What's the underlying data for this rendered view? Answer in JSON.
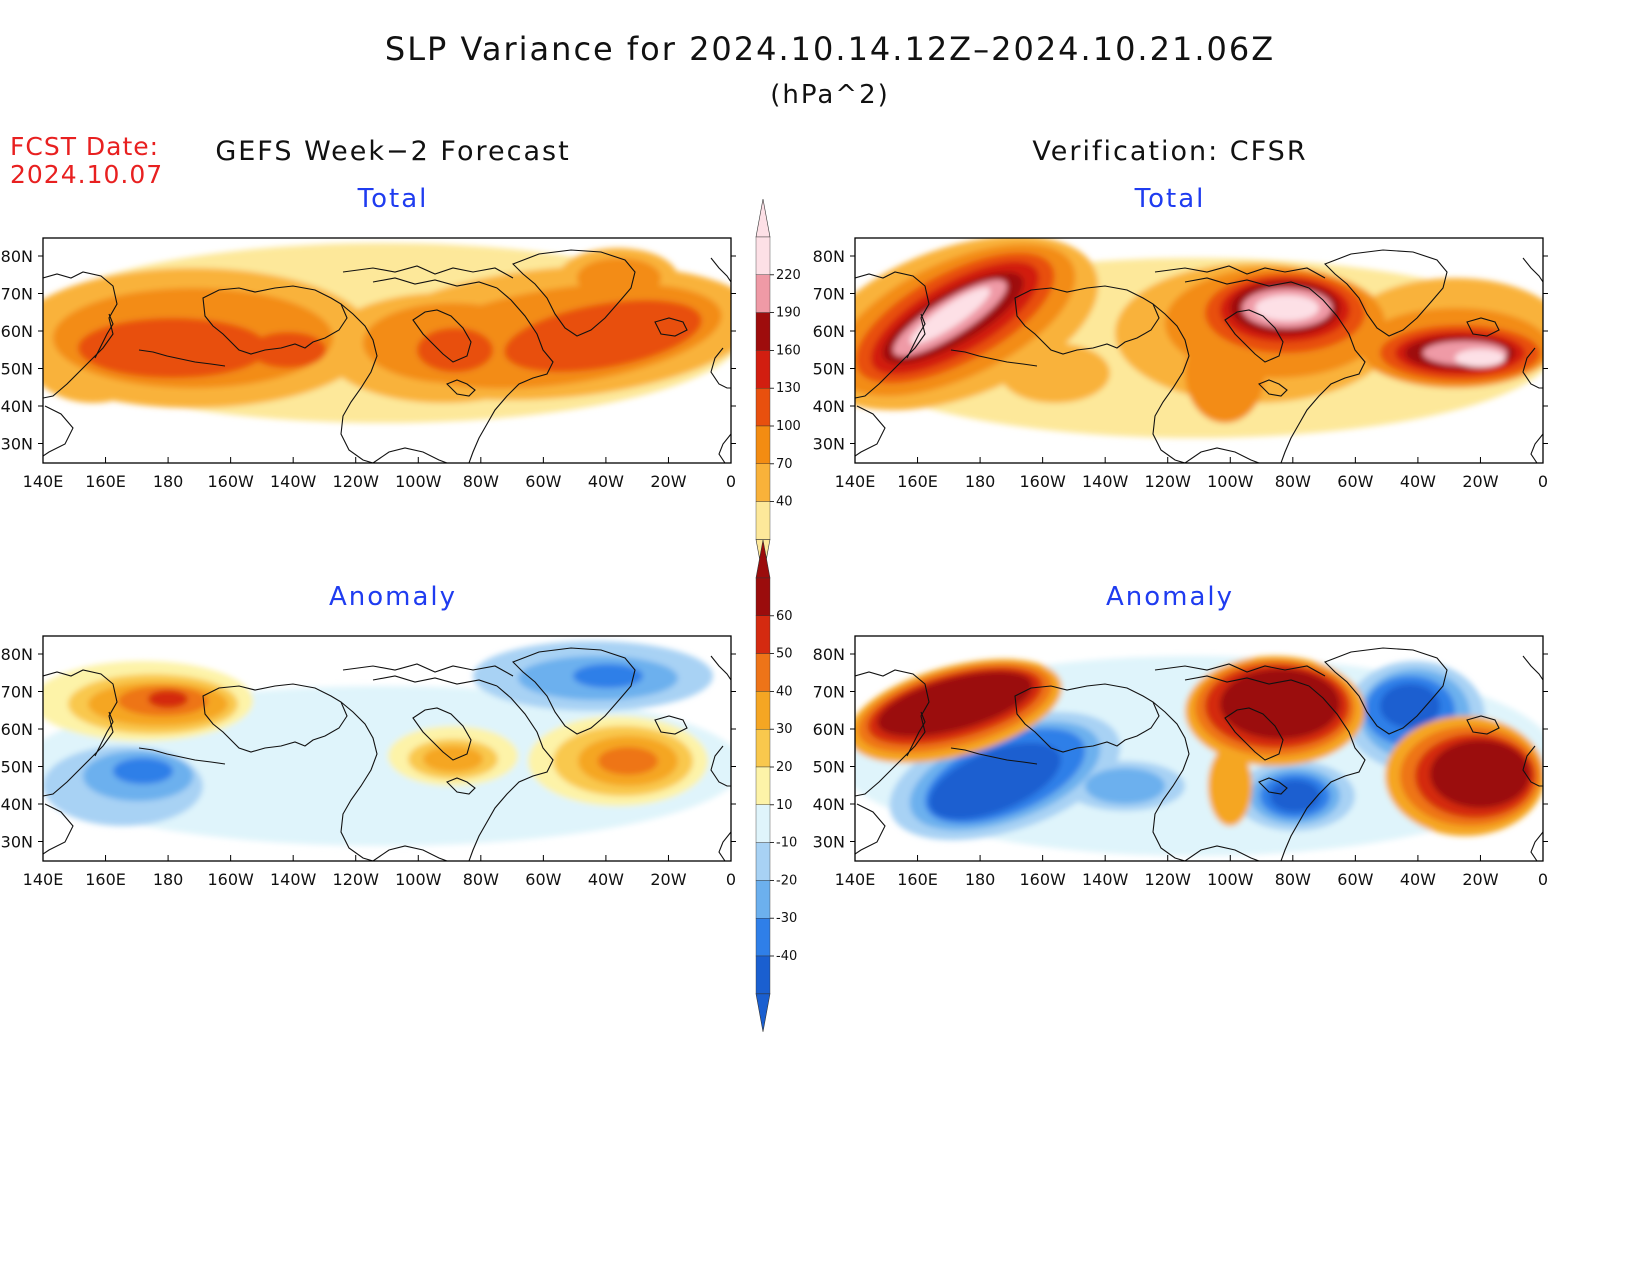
{
  "figure": {
    "title": "SLP Variance for 2024.10.14.12Z–2024.10.21.06Z",
    "units": "(hPa^2)",
    "fcst_label": "FCST Date:",
    "fcst_date": "2024.10.07",
    "left_heading": "GEFS Week−2 Forecast",
    "right_heading": "Verification: CFSR"
  },
  "axes": {
    "lon_labels": [
      "140E",
      "160E",
      "180",
      "160W",
      "140W",
      "120W",
      "100W",
      "80W",
      "60W",
      "40W",
      "20W",
      "0"
    ],
    "lat_labels": [
      "80N",
      "70N",
      "60N",
      "50N",
      "40N",
      "30N"
    ]
  },
  "panels": [
    {
      "id": "forecast-total",
      "title": "Total"
    },
    {
      "id": "verification-total",
      "title": "Total"
    },
    {
      "id": "forecast-anomaly",
      "title": "Anomaly"
    },
    {
      "id": "verification-anomaly",
      "title": "Anomaly"
    }
  ],
  "colorbars": {
    "total": {
      "levels": [
        "40",
        "70",
        "100",
        "130",
        "160",
        "190",
        "220"
      ],
      "colors": [
        "#fde89a",
        "#f9b23a",
        "#f38c12",
        "#e8500e",
        "#d21e10",
        "#9e0c0c",
        "#ef9aa6",
        "#fde0e6"
      ]
    },
    "anomaly": {
      "levels": [
        "-40",
        "-30",
        "-20",
        "-10",
        "10",
        "20",
        "30",
        "40",
        "50",
        "60"
      ],
      "colors": [
        "#1a5fd0",
        "#2f7fe8",
        "#6cb0ee",
        "#a8d2f4",
        "#dff4fb",
        "#ffffff",
        "#fdf3a8",
        "#f9c84d",
        "#f5a623",
        "#ee7418",
        "#d42a10",
        "#9b0c0c"
      ]
    }
  },
  "chart_data": [
    {
      "type": "heatmap",
      "panel": "GEFS Week-2 Forecast",
      "title": "Total",
      "xlim": [
        "140E",
        "0"
      ],
      "ylim": [
        "25N",
        "85N"
      ],
      "features": [
        {
          "region": "North Pacific 160E-150W, 45-60N",
          "value_range": [
            130,
            160
          ]
        },
        {
          "region": "North Atlantic 55W-20W, 45-60N",
          "value_range": [
            130,
            160
          ]
        },
        {
          "region": "Central Canada 110W-80W, 45-60N",
          "value_range": [
            100,
            130
          ]
        },
        {
          "region": "Greenland Sea near 40W, 75N",
          "value_range": [
            100,
            130
          ]
        }
      ]
    },
    {
      "type": "heatmap",
      "panel": "Verification: CFSR",
      "title": "Total",
      "xlim": [
        "140E",
        "0"
      ],
      "ylim": [
        "25N",
        "85N"
      ],
      "features": [
        {
          "region": "Siberia/Bering 160E-170W, 50-72N",
          "value_range": [
            190,
            220
          ]
        },
        {
          "region": "Hudson Bay 95W-70W, 58-72N",
          "value_range": [
            190,
            220
          ]
        },
        {
          "region": "North Atlantic 45W-5W, 48-58N",
          "value_range": [
            190,
            220
          ]
        }
      ]
    },
    {
      "type": "heatmap",
      "panel": "GEFS Week-2 Forecast",
      "title": "Anomaly",
      "xlim": [
        "140E",
        "0"
      ],
      "ylim": [
        "25N",
        "85N"
      ],
      "features": [
        {
          "region": "Kamchatka/Bering 155E-170W, 63-72N",
          "value_range": [
            40,
            60
          ]
        },
        {
          "region": "West Pacific 150E-180, 40-55N",
          "value_range": [
            -40,
            -20
          ]
        },
        {
          "region": "Greenland 55W-25W, 70-82N",
          "value_range": [
            -30,
            -20
          ]
        },
        {
          "region": "Central Atlantic 50W-20W, 45-58N",
          "value_range": [
            30,
            50
          ]
        },
        {
          "region": "Great Lakes 105W-80W, 48-60N",
          "value_range": [
            20,
            40
          ]
        }
      ]
    },
    {
      "type": "heatmap",
      "panel": "Verification: CFSR",
      "title": "Anomaly",
      "xlim": [
        "140E",
        "0"
      ],
      "ylim": [
        "25N",
        "85N"
      ],
      "features": [
        {
          "region": "Siberia/Bering 145E-150W, 40-78N",
          "value_range": [
            40,
            60
          ]
        },
        {
          "region": "North Pacific 165E-140W, 35-58N",
          "value_range": [
            -40,
            -30
          ]
        },
        {
          "region": "Hudson Bay 100W-65W, 60-80N",
          "value_range": [
            50,
            60
          ]
        },
        {
          "region": "Eastern US 95W-75W, 38-52N",
          "value_range": [
            -40,
            -30
          ]
        },
        {
          "region": "Davis Strait/Labrador 60W-30W, 55-75N",
          "value_range": [
            -40,
            -30
          ]
        },
        {
          "region": "NE Atlantic 40W-0, 40-60N",
          "value_range": [
            50,
            60
          ]
        }
      ]
    }
  ]
}
